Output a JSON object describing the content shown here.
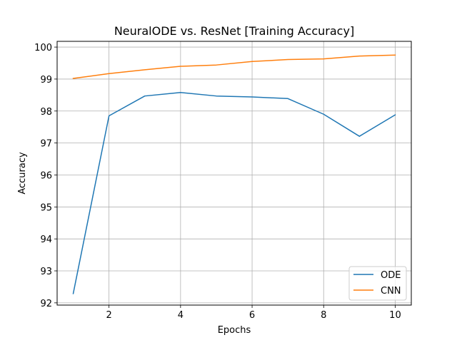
{
  "chart_data": {
    "type": "line",
    "title": "NeuralODE vs. ResNet [Training Accuracy]",
    "xlabel": "Epochs",
    "ylabel": "Accuracy",
    "x": [
      1,
      2,
      3,
      4,
      5,
      6,
      7,
      8,
      9,
      10
    ],
    "xlim": [
      0.55,
      10.45
    ],
    "ylim": [
      91.93,
      100.18
    ],
    "xticks": [
      2,
      4,
      6,
      8,
      10
    ],
    "yticks": [
      92,
      93,
      94,
      95,
      96,
      97,
      98,
      99,
      100
    ],
    "grid": true,
    "legend_position": "lower-right",
    "series": [
      {
        "name": "ODE",
        "color": "#1f77b4",
        "values": [
          92.29,
          97.85,
          98.47,
          98.58,
          98.47,
          98.44,
          98.39,
          97.9,
          97.21,
          97.88
        ]
      },
      {
        "name": "CNN",
        "color": "#ff7f0e",
        "values": [
          99.02,
          99.17,
          99.29,
          99.4,
          99.44,
          99.55,
          99.61,
          99.63,
          99.72,
          99.75
        ]
      }
    ]
  }
}
